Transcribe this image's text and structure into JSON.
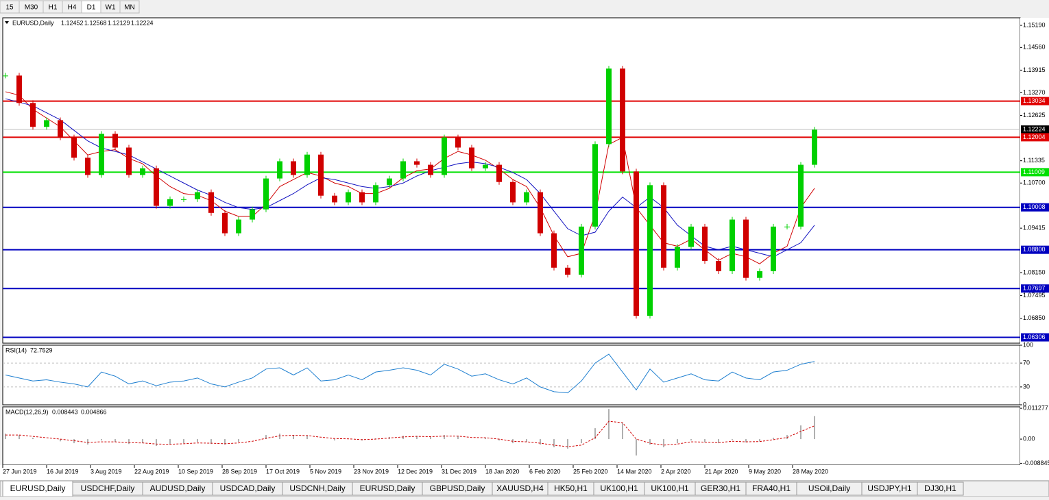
{
  "toolbar": {
    "timeframes": [
      "15",
      "M30",
      "H1",
      "H4",
      "D1",
      "W1",
      "MN"
    ]
  },
  "chart_data": [
    {
      "type": "candlestick",
      "title": "EURUSD,Daily",
      "ohlc": [
        "1.12452",
        "1.12568",
        "1.12129",
        "1.12224"
      ],
      "candles": [
        1.1376,
        1.1298,
        1.123,
        1.1249,
        1.12,
        1.1142,
        1.1093,
        1.121,
        1.1171,
        1.1093,
        1.1112,
        1.1005,
        1.1024,
        1.1024,
        1.1044,
        1.0985,
        1.0927,
        1.0966,
        1.0995,
        1.1083,
        1.1132,
        1.1093,
        1.1151,
        1.1034,
        1.1015,
        1.1044,
        1.1015,
        1.1064,
        1.1083,
        1.1132,
        1.1122,
        1.1093,
        1.12,
        1.1171,
        1.1112,
        1.1122,
        1.1073,
        1.1015,
        1.1044,
        1.0927,
        1.0829,
        1.0809,
        1.0946,
        1.1181,
        1.1396,
        1.1103,
        1.0692,
        1.1064,
        1.0829,
        1.0888,
        1.0946,
        1.0848,
        1.0819,
        1.0966,
        1.08,
        1.0819,
        1.0946,
        1.0946,
        1.1122,
        1.1222
      ],
      "up_color": "#00d000",
      "down_color": "#d00000",
      "moving_averages": [
        {
          "color": "#d00000",
          "values": [
            1.133,
            1.132,
            1.128,
            1.1255,
            1.123,
            1.119,
            1.115,
            1.116,
            1.1165,
            1.114,
            1.1125,
            1.109,
            1.106,
            1.104,
            1.1035,
            1.102,
            1.099,
            1.0975,
            1.0975,
            1.101,
            1.106,
            1.108,
            1.11,
            1.109,
            1.107,
            1.106,
            1.104,
            1.104,
            1.1055,
            1.1085,
            1.1105,
            1.111,
            1.114,
            1.116,
            1.115,
            1.1135,
            1.111,
            1.108,
            1.106,
            1.1,
            1.092,
            1.086,
            1.087,
            1.098,
            1.118,
            1.12,
            1.1,
            1.095,
            1.09,
            1.089,
            1.091,
            1.088,
            1.085,
            1.087,
            1.086,
            1.084,
            1.087,
            1.089,
            1.1,
            1.1055
          ]
        },
        {
          "color": "#1010c0",
          "values": [
            1.131,
            1.13,
            1.129,
            1.127,
            1.125,
            1.122,
            1.119,
            1.117,
            1.116,
            1.115,
            1.113,
            1.111,
            1.109,
            1.107,
            1.105,
            1.1035,
            1.1015,
            1.1,
            1.0995,
            1.1,
            1.102,
            1.104,
            1.1065,
            1.1085,
            1.108,
            1.107,
            1.106,
            1.1055,
            1.106,
            1.107,
            1.109,
            1.1105,
            1.1115,
            1.1125,
            1.113,
            1.1125,
            1.1115,
            1.11,
            1.108,
            1.104,
            1.099,
            1.094,
            1.092,
            1.093,
            1.099,
            1.103,
            1.1,
            1.103,
            1.1,
            1.095,
            1.092,
            1.089,
            1.088,
            1.089,
            1.088,
            1.087,
            1.086,
            1.088,
            1.09,
            1.095
          ]
        }
      ],
      "levels": [
        {
          "value": 1.13034,
          "color": "#e00000"
        },
        {
          "value": 1.12004,
          "color": "#e00000"
        },
        {
          "value": 1.11009,
          "color": "#00e000"
        },
        {
          "value": 1.10008,
          "color": "#0000c0"
        },
        {
          "value": {
            "value": 1.088,
            "label": "1.08800"
          },
          "color": "#0000c0"
        },
        {
          "value": 1.07697,
          "color": "#0000c0"
        },
        {
          "value": 1.06306,
          "color": "#0000c0"
        }
      ],
      "current_price": 1.12224,
      "ylim": [
        1.06141,
        1.15405
      ],
      "yticks": [
        {
          "value": 1.1519,
          "label": "1.15190"
        },
        {
          "value": 1.1456,
          "label": "1.14560"
        },
        1.13915,
        {
          "value": 1.1327,
          "label": "1.13270"
        },
        1.12625,
        1.11335,
        {
          "value": 1.107,
          "label": "1.10700"
        },
        1.09415,
        {
          "value": 1.0815,
          "label": "1.08150"
        },
        1.07495,
        {
          "value": 1.0685,
          "label": "1.06850"
        }
      ],
      "dates": [
        "27 Jun 2019",
        "16 Jul 2019",
        "3 Aug 2019",
        "22 Aug 2019",
        "10 Sep 2019",
        "28 Sep 2019",
        "17 Oct 2019",
        "5 Nov 2019",
        "23 Nov 2019",
        "12 Dec 2019",
        "31 Dec 2019",
        "18 Jan 2020",
        "6 Feb 2020",
        "25 Feb 2020",
        "14 Mar 2020",
        "2 Apr 2020",
        "21 Apr 2020",
        "9 May 2020",
        "28 May 2020"
      ]
    },
    {
      "type": "line",
      "title": "RSI(14)",
      "last": 72.7529,
      "color": "#1e7fd0",
      "values": [
        50,
        45,
        40,
        42,
        38,
        35,
        30,
        55,
        48,
        35,
        40,
        32,
        38,
        40,
        45,
        35,
        30,
        38,
        45,
        60,
        62,
        50,
        62,
        40,
        42,
        50,
        42,
        55,
        58,
        62,
        58,
        50,
        68,
        60,
        48,
        52,
        42,
        35,
        45,
        30,
        22,
        20,
        40,
        70,
        85,
        55,
        25,
        60,
        38,
        45,
        52,
        42,
        40,
        55,
        45,
        42,
        55,
        58,
        68,
        72.7529
      ],
      "ylim": [
        0,
        100
      ],
      "yticks": [
        100,
        70,
        30,
        0
      ],
      "levels": [
        70,
        30
      ]
    },
    {
      "type": "macd",
      "title": "MACD(12,26,9)",
      "last": [
        "0.008443",
        "0.004866"
      ],
      "hist_color": "#b0b0b0",
      "signal_color": "#d00000",
      "values": [
        0.002,
        0.0015,
        0.0005,
        0,
        -0.0008,
        -0.0015,
        -0.002,
        -0.0005,
        -0.001,
        -0.0018,
        -0.0015,
        -0.0025,
        -0.002,
        -0.0015,
        -0.001,
        -0.0018,
        -0.002,
        -0.001,
        0,
        0.0015,
        0.002,
        0.0015,
        0.0012,
        0,
        -0.0005,
        0,
        -0.0005,
        0.0003,
        0.0008,
        0.0012,
        0.0012,
        0.0008,
        0.0015,
        0.0012,
        0,
        0.0005,
        -0.0005,
        -0.0015,
        -0.001,
        -0.002,
        -0.003,
        -0.0035,
        -0.0015,
        0.004,
        0.011,
        0.006,
        -0.006,
        -0.002,
        -0.003,
        -0.0015,
        -0.0005,
        -0.0012,
        -0.0015,
        -0.0003,
        -0.0012,
        -0.0008,
        0.0005,
        0.0015,
        0.005,
        0.008443
      ],
      "signal": [
        0.0015,
        0.0015,
        0.001,
        0.0005,
        0,
        -0.0006,
        -0.0012,
        -0.001,
        -0.001,
        -0.0013,
        -0.0014,
        -0.0018,
        -0.0019,
        -0.0017,
        -0.0014,
        -0.0015,
        -0.0017,
        -0.0014,
        -0.0008,
        0.0003,
        0.0012,
        0.0014,
        0.0013,
        0.0007,
        0.0002,
        0.0001,
        -0.0002,
        0,
        0.0004,
        0.0008,
        0.001,
        0.0009,
        0.0011,
        0.0011,
        0.0006,
        0.0005,
        0,
        -0.0008,
        -0.001,
        -0.0015,
        -0.0022,
        -0.0028,
        -0.0022,
        0.0005,
        0.0065,
        0.006,
        0,
        -0.0015,
        -0.0022,
        -0.0018,
        -0.001,
        -0.0011,
        -0.0013,
        -0.0008,
        -0.001,
        -0.0009,
        -0.0002,
        0.0006,
        0.0028,
        0.004866
      ],
      "ylim": [
        -0.0095,
        0.0118
      ],
      "yticks": [
        0.011277,
        {
          "value": 0,
          "label": "0.00"
        },
        -0.008845
      ]
    }
  ],
  "tabs": [
    "EURUSD,Daily",
    "USDCHF,Daily",
    "AUDUSD,Daily",
    "USDCAD,Daily",
    "USDCNH,Daily",
    "EURUSD,Daily",
    "GBPUSD,Daily",
    "XAUUSD,H4",
    "HK50,H1",
    "UK100,H1",
    "UK100,H1",
    "GER30,H1",
    "FRA40,H1",
    "USOil,Daily",
    "USDJPY,H1",
    "DJ30,H1"
  ]
}
